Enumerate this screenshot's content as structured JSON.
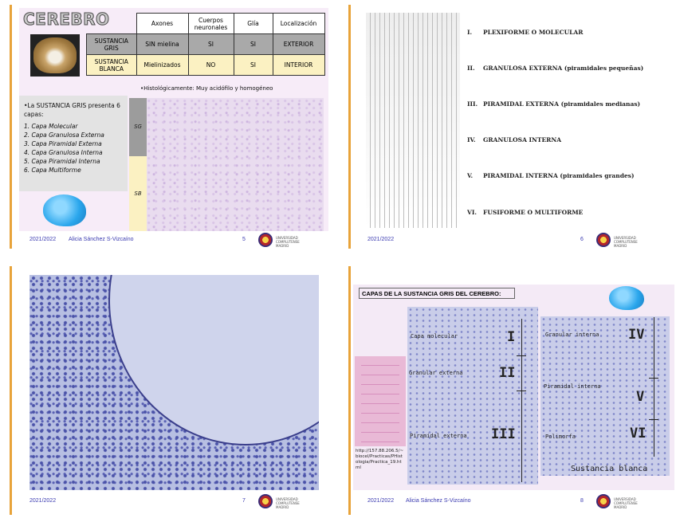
{
  "slide5": {
    "title": "CEREBRO",
    "table": {
      "headers": [
        "",
        "Axones",
        "Cuerpos neuronales",
        "Glía",
        "Localización"
      ],
      "rows": [
        {
          "label": "SUSTANCIA GRIS",
          "axones": "SIN mielina",
          "cuerpos": "SI",
          "glia": "SI",
          "loc": "EXTERIOR"
        },
        {
          "label": "SUSTANCIA BLANCA",
          "axones": "Mielinizados",
          "cuerpos": "NO",
          "glia": "SI",
          "loc": "INTERIOR"
        }
      ]
    },
    "histo": "•Histológicamente: Muy acidófilo y homogéneo",
    "intro": "•La SUSTANCIA GRIS presenta 6 capas:",
    "capas": [
      "1. Capa Molecular",
      "2. Capa Granulosa Externa",
      "3. Capa Piramidal Externa",
      "4. Capa Granulosa Interna",
      "5. Capa Piramidal Interna",
      "6. Capa Multiforme"
    ],
    "lbl_sg": "SG",
    "lbl_sb": "SB",
    "footer_year": "2021/2022",
    "footer_author": "Alicia Sánchez S-Vizcaíno",
    "page": "5"
  },
  "slide6": {
    "layers": [
      {
        "num": "I.",
        "name": "PLEXIFORME O MOLECULAR"
      },
      {
        "num": "II.",
        "name": "GRANULOSA EXTERNA (piramidales pequeñas)"
      },
      {
        "num": "III.",
        "name": "PIRAMIDAL EXTERNA (piramidales medianas)"
      },
      {
        "num": "IV.",
        "name": "GRANULOSA INTERNA"
      },
      {
        "num": "V.",
        "name": "PIRAMIDAL INTERNA (piramidales grandes)"
      },
      {
        "num": "VI.",
        "name": "FUSIFORME O MULTIFORME"
      }
    ],
    "footer_year": "2021/2022",
    "page": "6"
  },
  "slide7": {
    "footer_year": "2021/2022",
    "page": "7"
  },
  "slide8": {
    "title": "CAPAS DE LA SUSTANCIA GRIS DEL CEREBRO:",
    "url": "http://157.88.206.5/~biocel/Practicas/PHistologia/Practica_19.html",
    "labels_left": [
      "Capa molecular",
      "Granular externa",
      "Piramidal externa"
    ],
    "labels_right": [
      "Granular interna",
      "Piramidal interna",
      "Polimorfa",
      "Sustancia blanca"
    ],
    "romans": [
      "I",
      "II",
      "III",
      "IV",
      "V",
      "VI"
    ],
    "footer_year": "2021/2022",
    "footer_author": "Alicia Sánchez S-Vizcaíno",
    "page": "8"
  },
  "logo_text": "UNIVERSIDAD COMPLUTENSE MADRID"
}
